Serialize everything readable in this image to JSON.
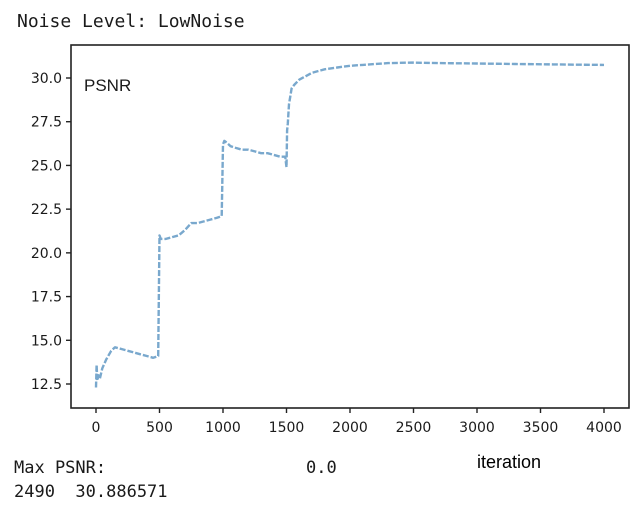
{
  "header": {
    "title": "Noise Level: LowNoise"
  },
  "footer": {
    "max_label": "Max PSNR:",
    "zero_value": "0.0",
    "max_row": "2490  30.886571"
  },
  "chart_data": {
    "type": "line",
    "title": "",
    "annotation": "PSNR",
    "xlabel": "iteration",
    "ylabel": "",
    "xlim": [
      -200,
      4200
    ],
    "ylim": [
      11.2,
      31.9
    ],
    "xticks": [
      0,
      500,
      1000,
      1500,
      2000,
      2500,
      3000,
      3500,
      4000
    ],
    "yticks": [
      12.5,
      15.0,
      17.5,
      20.0,
      22.5,
      25.0,
      27.5,
      30.0
    ],
    "ytick_labels": [
      "12.5",
      "15.0",
      "17.5",
      "20.0",
      "22.5",
      "25.0",
      "27.5",
      "30.0"
    ],
    "grid": false,
    "line_color": "#6a9ec8",
    "line_style": "dashed",
    "series": [
      {
        "name": "PSNR",
        "x": [
          0,
          5,
          10,
          20,
          30,
          50,
          80,
          120,
          150,
          200,
          250,
          300,
          350,
          400,
          450,
          490,
          500,
          510,
          550,
          600,
          650,
          700,
          750,
          800,
          850,
          900,
          950,
          990,
          1000,
          1010,
          1030,
          1060,
          1100,
          1150,
          1200,
          1250,
          1300,
          1350,
          1400,
          1450,
          1490,
          1500,
          1505,
          1510,
          1520,
          1540,
          1560,
          1600,
          1650,
          1700,
          1800,
          1900,
          2000,
          2100,
          2200,
          2300,
          2490,
          2700,
          3000,
          3300,
          3600,
          3800,
          4000
        ],
        "y": [
          12.3,
          13.6,
          12.7,
          13.0,
          12.8,
          13.4,
          13.9,
          14.4,
          14.6,
          14.5,
          14.4,
          14.3,
          14.2,
          14.1,
          14.0,
          14.1,
          21.0,
          20.8,
          20.8,
          20.9,
          21.0,
          21.3,
          21.7,
          21.7,
          21.8,
          21.9,
          22.0,
          22.1,
          26.2,
          26.4,
          26.3,
          26.1,
          26.0,
          25.9,
          25.9,
          25.8,
          25.7,
          25.7,
          25.6,
          25.5,
          25.5,
          24.9,
          27.0,
          27.4,
          28.5,
          29.4,
          29.6,
          29.9,
          30.1,
          30.3,
          30.5,
          30.6,
          30.7,
          30.75,
          30.8,
          30.85,
          30.88,
          30.85,
          30.83,
          30.8,
          30.78,
          30.76,
          30.75
        ]
      }
    ]
  }
}
